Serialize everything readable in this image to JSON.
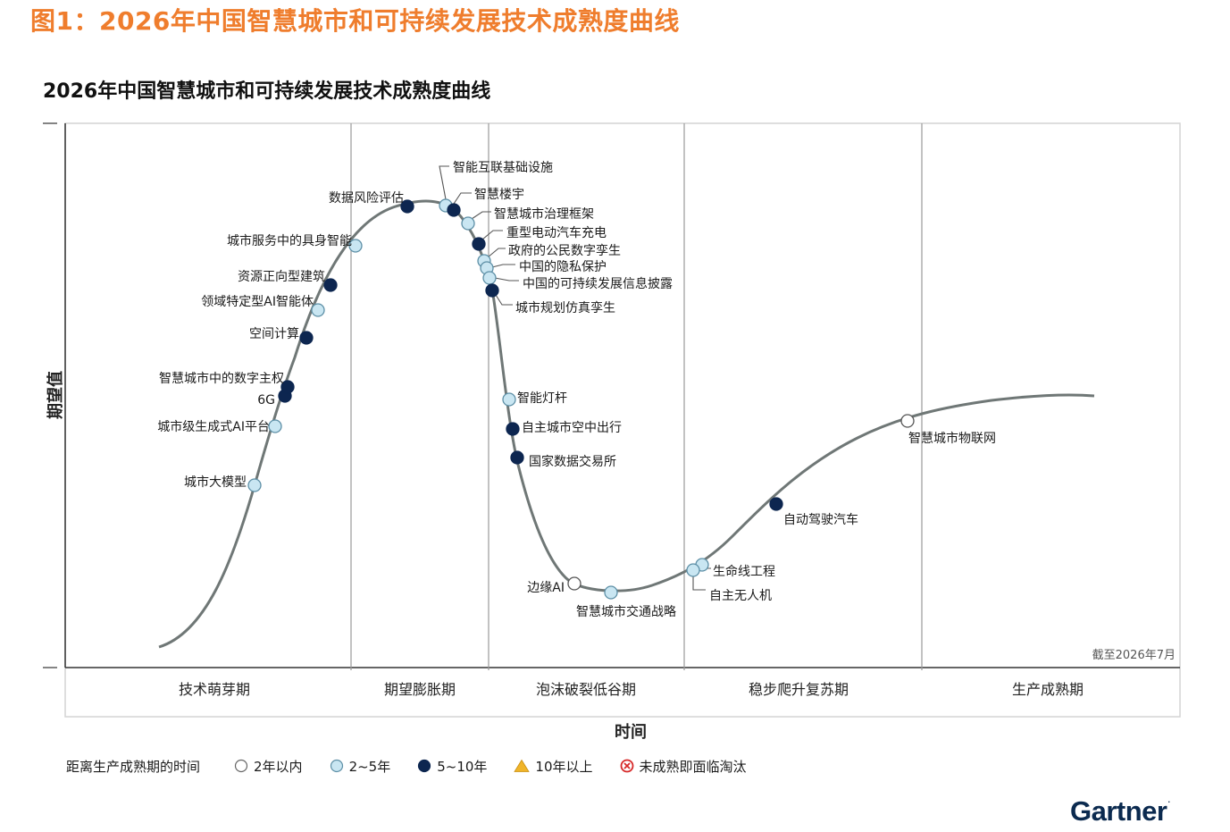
{
  "figure_caption": "图1：2026年中国智慧城市和可持续发展技术成熟度曲线",
  "colors": {
    "caption": "#ef7d2d",
    "curve": "#6f7776",
    "light_blue": "#c9e6f2",
    "dark_navy": "#0d2650",
    "open": "#ffffff",
    "triangle": "#f0b429",
    "obsolete": "#d62828",
    "brand": "#0b2a4f"
  },
  "chart_data": {
    "type": "hype-cycle",
    "title": "2026年中国智慧城市和可持续发展技术成熟度曲线",
    "xlabel": "时间",
    "ylabel": "期望值",
    "as_of": "截至2026年7月",
    "phases": [
      "技术萌芽期",
      "期望膨胀期",
      "泡沫破裂低谷期",
      "稳步爬升复苏期",
      "生产成熟期"
    ],
    "legend": {
      "title": "距离生产成熟期的时间",
      "items": [
        {
          "label": "2年以内",
          "marker": "open-circle"
        },
        {
          "label": "2~5年",
          "marker": "light-circle"
        },
        {
          "label": "5~10年",
          "marker": "dark-circle"
        },
        {
          "label": "10年以上",
          "marker": "triangle"
        },
        {
          "label": "未成熟即面临淘汰",
          "marker": "cross-circle"
        }
      ]
    },
    "technologies": [
      {
        "name": "城市大模型",
        "phase": "技术萌芽期",
        "time_to_plateau": "2~5年"
      },
      {
        "name": "城市级生成式AI平台",
        "phase": "技术萌芽期",
        "time_to_plateau": "2~5年"
      },
      {
        "name": "6G",
        "phase": "技术萌芽期",
        "time_to_plateau": "5~10年"
      },
      {
        "name": "智慧城市中的数字主权",
        "phase": "技术萌芽期",
        "time_to_plateau": "5~10年"
      },
      {
        "name": "空间计算",
        "phase": "技术萌芽期",
        "time_to_plateau": "5~10年"
      },
      {
        "name": "领域特定型AI智能体",
        "phase": "技术萌芽期",
        "time_to_plateau": "2~5年"
      },
      {
        "name": "资源正向型建筑",
        "phase": "技术萌芽期",
        "time_to_plateau": "5~10年"
      },
      {
        "name": "城市服务中的具身智能",
        "phase": "期望膨胀期",
        "time_to_plateau": "2~5年"
      },
      {
        "name": "数据风险评估",
        "phase": "期望膨胀期",
        "time_to_plateau": "5~10年"
      },
      {
        "name": "智能互联基础设施",
        "phase": "期望膨胀期",
        "time_to_plateau": "2~5年"
      },
      {
        "name": "智慧楼宇",
        "phase": "期望膨胀期",
        "time_to_plateau": "5~10年"
      },
      {
        "name": "智慧城市治理框架",
        "phase": "期望膨胀期",
        "time_to_plateau": "2~5年"
      },
      {
        "name": "重型电动汽车充电",
        "phase": "期望膨胀期",
        "time_to_plateau": "5~10年"
      },
      {
        "name": "政府的公民数字孪生",
        "phase": "期望膨胀期",
        "time_to_plateau": "2~5年"
      },
      {
        "name": "中国的隐私保护",
        "phase": "期望膨胀期",
        "time_to_plateau": "2~5年"
      },
      {
        "name": "中国的可持续发展信息披露",
        "phase": "期望膨胀期",
        "time_to_plateau": "2~5年"
      },
      {
        "name": "城市规划仿真孪生",
        "phase": "泡沫破裂低谷期",
        "time_to_plateau": "5~10年"
      },
      {
        "name": "智能灯杆",
        "phase": "泡沫破裂低谷期",
        "time_to_plateau": "2~5年"
      },
      {
        "name": "自主城市空中出行",
        "phase": "泡沫破裂低谷期",
        "time_to_plateau": "5~10年"
      },
      {
        "name": "国家数据交易所",
        "phase": "泡沫破裂低谷期",
        "time_to_plateau": "5~10年"
      },
      {
        "name": "边缘AI",
        "phase": "泡沫破裂低谷期",
        "time_to_plateau": "2年以内"
      },
      {
        "name": "智慧城市交通战略",
        "phase": "泡沫破裂低谷期",
        "time_to_plateau": "2~5年"
      },
      {
        "name": "生命线工程",
        "phase": "稳步爬升复苏期",
        "time_to_plateau": "2~5年"
      },
      {
        "name": "自主无人机",
        "phase": "稳步爬升复苏期",
        "time_to_plateau": "2~5年"
      },
      {
        "name": "自动驾驶汽车",
        "phase": "稳步爬升复苏期",
        "time_to_plateau": "5~10年"
      },
      {
        "name": "智慧城市物联网",
        "phase": "稳步爬升复苏期",
        "time_to_plateau": "2年以内"
      }
    ]
  },
  "brand": "Gartner",
  "brand_mark": "."
}
